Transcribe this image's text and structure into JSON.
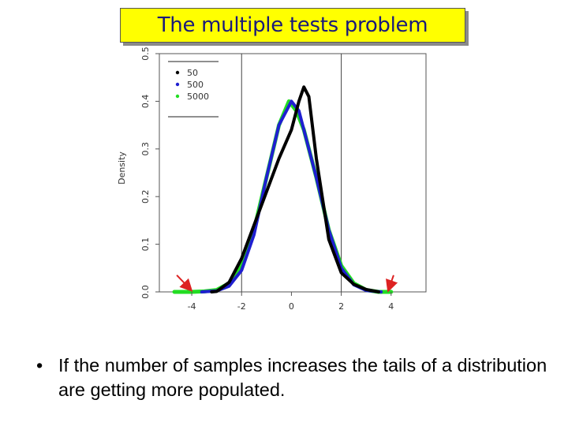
{
  "slide": {
    "title": "The multiple tests problem",
    "bullet": "•",
    "bullet_text": "If the number of samples increases the tails of a distribution are getting more populated."
  },
  "chart_data": {
    "type": "line",
    "title": "",
    "xlabel": "",
    "ylabel": "Density",
    "xlim": [
      -5.3,
      5.4
    ],
    "ylim": [
      0.0,
      0.5
    ],
    "x_ticks": [
      -4,
      -2,
      0,
      2,
      4
    ],
    "x_tick_labels": [
      "-4",
      "-2",
      "0",
      "2",
      "4"
    ],
    "y_ticks": [
      0.0,
      0.1,
      0.2,
      0.3,
      0.4,
      0.5
    ],
    "y_tick_labels": [
      "0.0",
      "0.1",
      "0.2",
      "0.3",
      "0.4",
      "0.5"
    ],
    "vlines": [
      -2,
      2
    ],
    "grid": false,
    "legend_position": "top-left",
    "series": [
      {
        "name": "50",
        "color": "#000000",
        "x": [
          -3.2,
          -3.0,
          -2.5,
          -2.0,
          -1.5,
          -1.0,
          -0.5,
          0.0,
          0.3,
          0.5,
          0.7,
          1.0,
          1.5,
          2.0,
          2.5,
          3.0,
          3.5
        ],
        "y": [
          0.0,
          0.001,
          0.02,
          0.07,
          0.14,
          0.21,
          0.28,
          0.34,
          0.4,
          0.43,
          0.41,
          0.28,
          0.11,
          0.04,
          0.016,
          0.005,
          0.0
        ]
      },
      {
        "name": "500",
        "color": "#1f1fd0",
        "x": [
          -3.6,
          -3.0,
          -2.5,
          -2.0,
          -1.5,
          -1.0,
          -0.5,
          0.0,
          0.3,
          0.7,
          1.0,
          1.5,
          2.0,
          2.5,
          3.0,
          3.6
        ],
        "y": [
          0.0,
          0.002,
          0.012,
          0.045,
          0.12,
          0.24,
          0.35,
          0.4,
          0.38,
          0.3,
          0.24,
          0.13,
          0.05,
          0.015,
          0.003,
          0.0
        ]
      },
      {
        "name": "5000",
        "color": "#22dd22",
        "x": [
          -4.7,
          -4.0,
          -3.5,
          -3.0,
          -2.5,
          -2.0,
          -1.5,
          -1.0,
          -0.5,
          -0.1,
          0.2,
          0.5,
          1.0,
          1.5,
          2.0,
          2.5,
          3.0,
          3.5,
          4.0
        ],
        "y": [
          0.0,
          0.0,
          0.001,
          0.004,
          0.018,
          0.055,
          0.13,
          0.24,
          0.35,
          0.4,
          0.38,
          0.34,
          0.24,
          0.13,
          0.055,
          0.018,
          0.004,
          0.0,
          0.0
        ]
      }
    ],
    "annotations": [
      {
        "type": "arrow",
        "color": "#dd2222",
        "from": [
          -4.6,
          0.035
        ],
        "to": [
          -4.05,
          0.005
        ]
      },
      {
        "type": "arrow",
        "color": "#dd2222",
        "from": [
          4.1,
          0.035
        ],
        "to": [
          3.9,
          0.005
        ]
      }
    ]
  }
}
